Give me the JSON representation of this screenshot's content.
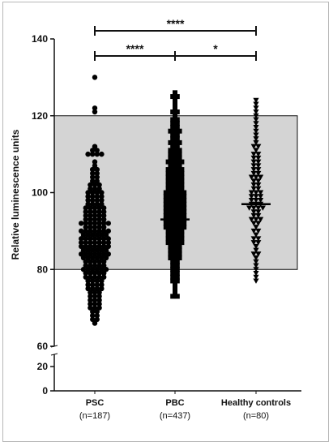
{
  "chart_data": {
    "type": "scatter",
    "ylabel": "Relative luminescence units",
    "y_ticks_upper": [
      "60",
      "80",
      "100",
      "120",
      "140"
    ],
    "y_ticks_lower": [
      "0",
      "20"
    ],
    "ylim_upper": [
      60,
      140
    ],
    "ylim_lower": [
      0,
      30
    ],
    "axis_break": true,
    "reference_range": [
      80,
      120
    ],
    "reference_band_color": "#d4d4d4",
    "point_color": "#000000",
    "groups": [
      {
        "name": "PSC",
        "n_label": "(n=187)",
        "marker": "circle",
        "median": 87,
        "values": [
          130,
          122,
          121,
          112,
          111,
          111,
          110,
          110,
          110,
          110,
          108,
          107,
          106,
          106,
          105,
          105,
          104,
          104,
          103,
          103,
          102,
          102,
          102,
          101,
          101,
          101,
          100,
          100,
          100,
          100,
          99,
          99,
          99,
          99,
          98,
          98,
          98,
          98,
          97,
          97,
          97,
          97,
          96,
          96,
          96,
          96,
          96,
          95,
          95,
          95,
          95,
          95,
          94,
          94,
          94,
          94,
          94,
          93,
          93,
          93,
          93,
          93,
          92,
          92,
          92,
          92,
          92,
          92,
          91,
          91,
          91,
          91,
          91,
          90,
          90,
          90,
          90,
          90,
          90,
          89,
          89,
          89,
          89,
          89,
          89,
          88,
          88,
          88,
          88,
          88,
          88,
          87,
          87,
          87,
          87,
          87,
          87,
          87,
          86,
          86,
          86,
          86,
          86,
          86,
          85,
          85,
          85,
          85,
          85,
          85,
          84,
          84,
          84,
          84,
          84,
          84,
          83,
          83,
          83,
          83,
          83,
          83,
          82,
          82,
          82,
          82,
          82,
          81,
          81,
          81,
          81,
          81,
          80,
          80,
          80,
          80,
          80,
          79,
          79,
          79,
          79,
          79,
          78,
          78,
          78,
          78,
          77,
          77,
          77,
          77,
          76,
          76,
          76,
          76,
          75,
          75,
          75,
          75,
          74,
          74,
          74,
          73,
          73,
          73,
          72,
          72,
          72,
          71,
          71,
          71,
          70,
          70,
          70,
          69,
          69,
          68,
          68,
          67,
          67,
          66,
          86,
          88,
          90,
          92,
          84,
          80,
          78
        ]
      },
      {
        "name": "PBC",
        "n_label": "(n=437)",
        "marker": "square",
        "median": 93,
        "values": [
          126,
          125,
          125,
          124,
          123,
          122,
          121,
          121,
          120,
          119,
          119,
          118,
          118,
          117,
          117,
          116,
          116,
          116,
          115,
          115,
          114,
          114,
          113,
          113,
          113,
          112,
          112,
          111,
          111,
          111,
          110,
          110,
          110,
          109,
          109,
          109,
          108,
          108,
          108,
          108,
          107,
          107,
          107,
          106,
          106,
          106,
          106,
          105,
          105,
          105,
          105,
          104,
          104,
          104,
          104,
          103,
          103,
          103,
          103,
          102,
          102,
          102,
          102,
          101,
          101,
          101,
          101,
          100,
          100,
          100,
          100,
          100,
          99,
          99,
          99,
          99,
          99,
          98,
          98,
          98,
          98,
          98,
          97,
          97,
          97,
          97,
          97,
          96,
          96,
          96,
          96,
          96,
          95,
          95,
          95,
          95,
          95,
          94,
          94,
          94,
          94,
          94,
          93,
          93,
          93,
          93,
          93,
          92,
          92,
          92,
          92,
          92,
          91,
          91,
          91,
          91,
          91,
          90,
          90,
          90,
          90,
          89,
          89,
          89,
          89,
          88,
          88,
          88,
          88,
          87,
          87,
          87,
          87,
          86,
          86,
          86,
          85,
          85,
          85,
          84,
          84,
          84,
          83,
          83,
          83,
          82,
          82,
          81,
          81,
          80,
          80,
          79,
          79,
          78,
          78,
          77,
          77,
          76,
          75,
          74,
          73,
          73
        ]
      },
      {
        "name": "Healthy controls",
        "n_label": "(n=80)",
        "marker": "triangle-down",
        "median": 97,
        "values": [
          124,
          123,
          122,
          121,
          120,
          119,
          118,
          117,
          116,
          115,
          114,
          113,
          112,
          112,
          111,
          110,
          109,
          109,
          108,
          108,
          107,
          107,
          106,
          106,
          105,
          105,
          104,
          104,
          103,
          103,
          102,
          102,
          101,
          101,
          100,
          100,
          99,
          99,
          98,
          98,
          98,
          97,
          97,
          97,
          96,
          96,
          96,
          95,
          95,
          94,
          94,
          93,
          93,
          92,
          92,
          91,
          90,
          90,
          89,
          88,
          88,
          87,
          87,
          86,
          85,
          84,
          84,
          83,
          82,
          81,
          80,
          79,
          78,
          77,
          100,
          96,
          93,
          110,
          104,
          99
        ]
      }
    ],
    "comparisons": [
      {
        "from": "PSC",
        "to": "Healthy controls",
        "label": "****"
      },
      {
        "from": "PSC",
        "to": "PBC",
        "label": "****"
      },
      {
        "from": "PBC",
        "to": "Healthy controls",
        "label": "*"
      }
    ]
  }
}
